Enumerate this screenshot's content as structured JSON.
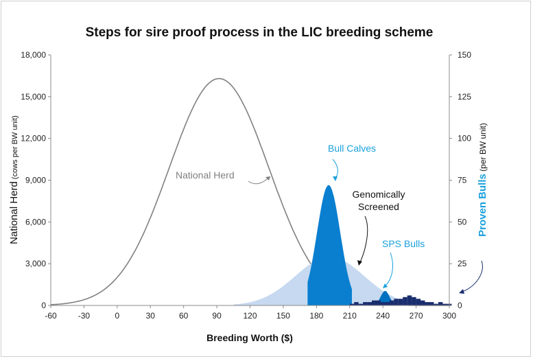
{
  "chart_data": {
    "type": "area",
    "title": "Steps for sire proof process in the LIC breeding scheme",
    "xlabel": "Breeding Worth ($)",
    "ylabel_left": {
      "main": "National Herd",
      "sub": " (cows per BW unit)"
    },
    "ylabel_right": {
      "main": "Proven Bulls",
      "sub": " (per BW unit)"
    },
    "xlim": [
      -60,
      300
    ],
    "ylim_left": [
      0,
      18000
    ],
    "ylim_right": [
      0,
      150
    ],
    "x_ticks": [
      "-60",
      "-30",
      "0",
      "30",
      "60",
      "90",
      "120",
      "150",
      "180",
      "210",
      "240",
      "270",
      "300"
    ],
    "y_left_ticks": [
      "0",
      "3,000",
      "6,000",
      "9,000",
      "12,000",
      "15,000",
      "18,000"
    ],
    "y_right_ticks": [
      "0",
      "25",
      "50",
      "75",
      "100",
      "125",
      "150"
    ],
    "grid": false,
    "series": [
      {
        "name": "National Herd",
        "axis": "left",
        "kind": "line",
        "color": "#808080",
        "mean": 92,
        "sd": 45,
        "peak": 16300,
        "x_range": [
          -60,
          300
        ]
      },
      {
        "name": "Genomically Screened",
        "axis": "left",
        "kind": "area",
        "color": "#c6d9f0",
        "mean": 192,
        "sd": 31,
        "peak": 3500,
        "x_range": [
          105,
          300
        ]
      },
      {
        "name": "Bull Calves",
        "axis": "left",
        "kind": "area",
        "color": "#0a7fd0",
        "mean": 191,
        "sd": 10.5,
        "peak": 8650,
        "x_range": [
          172,
          212
        ]
      },
      {
        "name": "SPS Bulls",
        "axis": "left",
        "kind": "area",
        "color": "#0070c0",
        "mean": 242,
        "sd": 4,
        "peak": 1050,
        "x_range": [
          232,
          252
        ]
      },
      {
        "name": "Proven Bulls",
        "axis": "right",
        "kind": "bars",
        "color": "#1a2e6e",
        "x": [
          210,
          214,
          218,
          222,
          226,
          230,
          234,
          238,
          242,
          246,
          250,
          254,
          258,
          262,
          266,
          270,
          274,
          278,
          282,
          286,
          290,
          294,
          298
        ],
        "values": [
          1,
          2,
          1,
          2,
          2,
          3,
          3,
          2,
          2,
          3,
          4,
          4,
          5,
          6,
          5,
          4,
          3,
          2,
          2,
          1,
          2,
          1,
          1
        ]
      }
    ],
    "annotations": [
      {
        "text": "National Herd",
        "color": "#808080"
      },
      {
        "text": "Bull Calves",
        "color": "#1aa0dc"
      },
      {
        "text": "Genomically",
        "color": "#111111"
      },
      {
        "text": "Screened",
        "color": "#111111"
      },
      {
        "text": "SPS Bulls",
        "color": "#1aa0dc"
      }
    ]
  }
}
